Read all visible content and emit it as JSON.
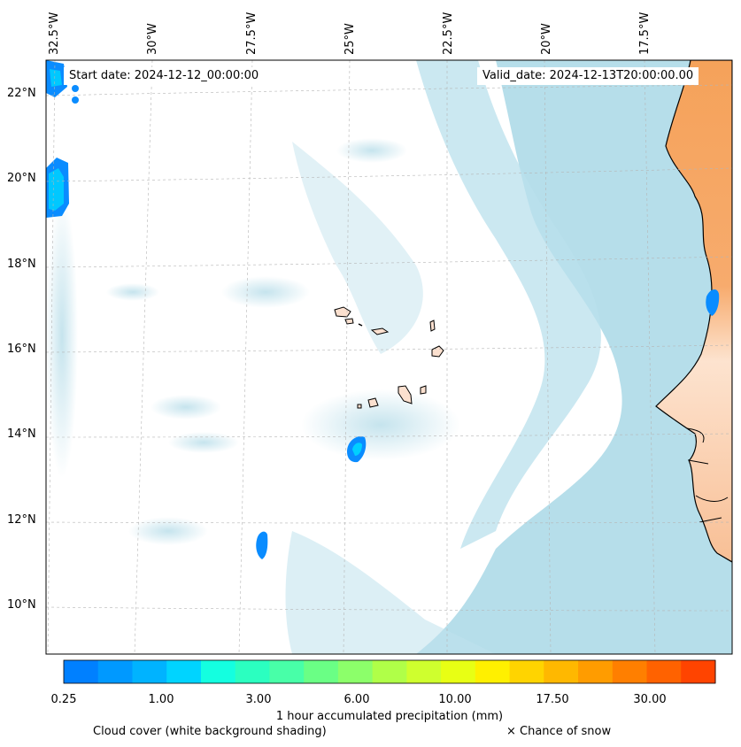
{
  "header": {
    "start_date": "Start date: 2024-12-12_00:00:00",
    "valid_date": "Valid_date: 2024-12-13T20:00:00.00"
  },
  "axes": {
    "longitude_ticks": [
      "32.5°W",
      "30°W",
      "27.5°W",
      "25°W",
      "22.5°W",
      "20°W",
      "17.5°W"
    ],
    "latitude_ticks": [
      "22°N",
      "20°N",
      "18°N",
      "16°N",
      "14°N",
      "12°N",
      "10°N"
    ]
  },
  "colorbar": {
    "title": "1 hour accumulated precipitation (mm)",
    "tick_labels": [
      "0.25",
      "1.00",
      "3.00",
      "6.00",
      "10.00",
      "17.50",
      "30.00"
    ],
    "colors": [
      "#0080ff",
      "#0099ff",
      "#00b3ff",
      "#00d4ff",
      "#14ffe0",
      "#2bffc0",
      "#48ffa8",
      "#6aff85",
      "#8cff6a",
      "#b0ff48",
      "#cfff2e",
      "#e8ff14",
      "#fff000",
      "#ffd400",
      "#ffb800",
      "#ff9c00",
      "#ff7f00",
      "#ff6200",
      "#ff4400"
    ]
  },
  "legend": {
    "cloud_cover": "Cloud cover (white background shading)",
    "snow": "× Chance of snow"
  },
  "colors": {
    "ocean": "#ffffff",
    "cloud": "#a9d8e6",
    "land_warm": "#f5a25a",
    "precip_blue": "#0a8cff"
  }
}
